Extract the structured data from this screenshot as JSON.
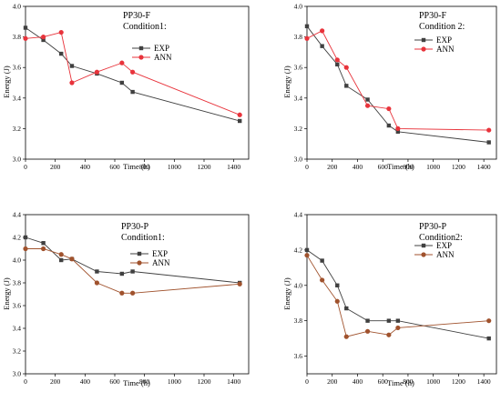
{
  "figure": {
    "background": "#ffffff",
    "colors": {
      "exp": "#404040",
      "ann": "#e8333b",
      "ann_brown": "#a0522d"
    }
  },
  "chart_data": [
    {
      "type": "line",
      "panel": "top-left",
      "title_lines": [
        "PP30-F",
        "Condition1:"
      ],
      "xlabel": "Time (h)",
      "ylabel": "Energy (J)",
      "xlim": [
        0,
        1500
      ],
      "ylim": [
        3.0,
        4.0
      ],
      "xticks": [
        0,
        200,
        400,
        600,
        800,
        1000,
        1200,
        1400
      ],
      "yticks": [
        3.0,
        3.2,
        3.4,
        3.6,
        3.8,
        4.0
      ],
      "ytick_labels": [
        "3.0",
        "3.2",
        "3.4",
        "3.6",
        "3.8",
        "4.0"
      ],
      "legend_position": "top-right",
      "series": [
        {
          "name": "EXP",
          "marker": "square",
          "color": "#404040",
          "x": [
            0,
            120,
            240,
            312,
            480,
            648,
            720,
            1440
          ],
          "y": [
            3.86,
            3.78,
            3.69,
            3.61,
            3.56,
            3.5,
            3.44,
            3.25
          ]
        },
        {
          "name": "ANN",
          "marker": "circle",
          "color": "#e8333b",
          "x": [
            0,
            120,
            240,
            312,
            480,
            648,
            720,
            1440
          ],
          "y": [
            3.79,
            3.8,
            3.83,
            3.5,
            3.57,
            3.63,
            3.57,
            3.29
          ]
        }
      ]
    },
    {
      "type": "line",
      "panel": "top-right",
      "title_lines": [
        "PP30-F",
        "Condition 2:"
      ],
      "xlabel": "Time (h)",
      "ylabel": "Energy (J)",
      "xlim": [
        0,
        1500
      ],
      "ylim": [
        3.0,
        4.0
      ],
      "xticks": [
        0,
        200,
        400,
        600,
        800,
        1000,
        1200,
        1400
      ],
      "yticks": [
        3.0,
        3.2,
        3.4,
        3.6,
        3.8,
        4.0
      ],
      "ytick_labels": [
        "3.0",
        "3.2",
        "3.4",
        "3.6",
        "3.8",
        "4.0"
      ],
      "legend_position": "top-right",
      "series": [
        {
          "name": "EXP",
          "marker": "square",
          "color": "#404040",
          "x": [
            0,
            120,
            240,
            312,
            480,
            648,
            720,
            1440
          ],
          "y": [
            3.87,
            3.74,
            3.62,
            3.48,
            3.39,
            3.22,
            3.18,
            3.11
          ]
        },
        {
          "name": "ANN",
          "marker": "circle",
          "color": "#e8333b",
          "x": [
            0,
            120,
            240,
            312,
            480,
            648,
            720,
            1440
          ],
          "y": [
            3.79,
            3.84,
            3.65,
            3.6,
            3.35,
            3.33,
            3.2,
            3.19
          ]
        }
      ]
    },
    {
      "type": "line",
      "panel": "bottom-left",
      "title_lines": [
        "PP30-P",
        "Condition1:"
      ],
      "xlabel": "Time (h)",
      "ylabel": "Energy (J)",
      "xlim": [
        0,
        1500
      ],
      "ylim": [
        3.0,
        4.4
      ],
      "xticks": [
        0,
        200,
        400,
        600,
        800,
        1000,
        1200,
        1400
      ],
      "yticks": [
        3.0,
        3.2,
        3.4,
        3.6,
        3.8,
        4.0,
        4.2,
        4.4
      ],
      "ytick_labels": [
        "3.0",
        "3.2",
        "3.4",
        "3.6",
        "3.8",
        "4.0",
        "4.2",
        "4.4"
      ],
      "legend_position": "top-right",
      "series": [
        {
          "name": "EXP",
          "marker": "square",
          "color": "#404040",
          "x": [
            0,
            120,
            240,
            312,
            480,
            648,
            720,
            1440
          ],
          "y": [
            4.2,
            4.15,
            4.0,
            4.01,
            3.9,
            3.88,
            3.9,
            3.8
          ]
        },
        {
          "name": "ANN",
          "marker": "circle",
          "color": "#a0522d",
          "x": [
            0,
            120,
            240,
            312,
            480,
            648,
            720,
            1440
          ],
          "y": [
            4.1,
            4.1,
            4.05,
            4.01,
            3.8,
            3.71,
            3.71,
            3.79
          ]
        }
      ]
    },
    {
      "type": "line",
      "panel": "bottom-right",
      "title_lines": [
        "PP30-P",
        "Condition2:"
      ],
      "xlabel": "Time (h)",
      "ylabel": "Energy (J)",
      "xlim": [
        0,
        1500
      ],
      "ylim": [
        3.5,
        4.4
      ],
      "xticks": [
        0,
        200,
        400,
        600,
        800,
        1000,
        1200,
        1400
      ],
      "yticks": [
        3.6,
        3.8,
        4.0,
        4.2,
        4.4
      ],
      "ytick_labels": [
        "3.6",
        "3.8",
        "4.0",
        "4.2",
        "4.4"
      ],
      "legend_position": "top-right",
      "series": [
        {
          "name": "EXP",
          "marker": "square",
          "color": "#404040",
          "x": [
            0,
            120,
            240,
            312,
            480,
            648,
            720,
            1440
          ],
          "y": [
            4.2,
            4.14,
            4.0,
            3.87,
            3.8,
            3.8,
            3.8,
            3.7
          ]
        },
        {
          "name": "ANN",
          "marker": "circle",
          "color": "#a0522d",
          "x": [
            0,
            120,
            240,
            312,
            480,
            648,
            720,
            1440
          ],
          "y": [
            4.17,
            4.03,
            3.91,
            3.71,
            3.74,
            3.72,
            3.76,
            3.8
          ]
        }
      ]
    }
  ]
}
